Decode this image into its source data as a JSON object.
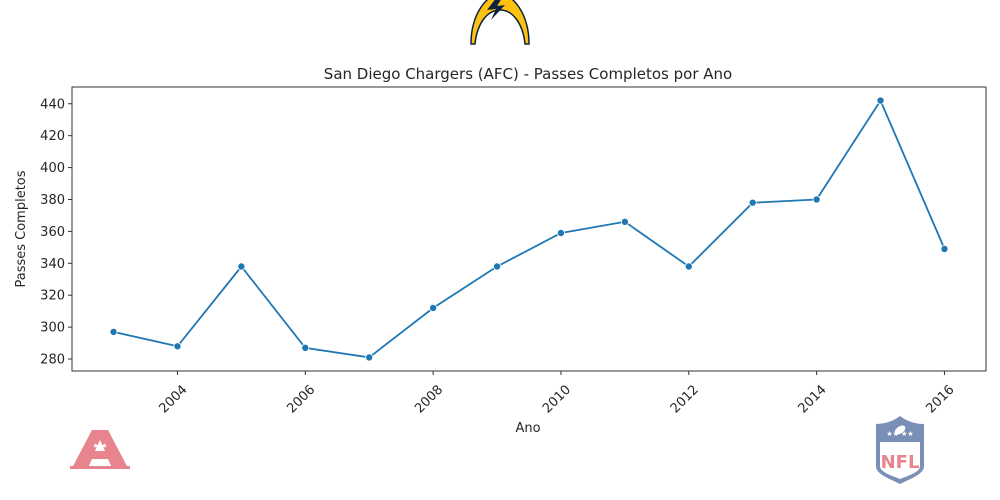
{
  "chart_data": {
    "type": "line",
    "title": "San Diego Chargers (AFC) - Passes Completos por Ano",
    "xlabel": "Ano",
    "ylabel": "Passes Completos",
    "x": [
      2003,
      2004,
      2005,
      2006,
      2007,
      2008,
      2009,
      2010,
      2011,
      2012,
      2013,
      2014,
      2015,
      2016
    ],
    "values": [
      297,
      288,
      338,
      287,
      281,
      312,
      338,
      359,
      366,
      338,
      378,
      380,
      442,
      349
    ],
    "xticks": [
      2004,
      2006,
      2008,
      2010,
      2012,
      2014,
      2016
    ],
    "yticks": [
      280,
      300,
      320,
      340,
      360,
      380,
      400,
      420,
      440
    ],
    "xlim": [
      2002.35,
      2016.65
    ],
    "ylim": [
      272.5,
      450.5
    ],
    "line_color": "#1f77b4",
    "marker_color": "#1f77b4",
    "grid": false,
    "legend": "none"
  },
  "logos": {
    "team": "chargers-bolt-logo",
    "conference": "afc-logo",
    "league": "nfl-shield-logo",
    "team_colors": {
      "gold": "#ffc20e",
      "navy": "#0c2340"
    },
    "conference_color": "#e8848e",
    "league_colors": {
      "blue": "#7a8fb6",
      "red": "#e8848e"
    }
  }
}
